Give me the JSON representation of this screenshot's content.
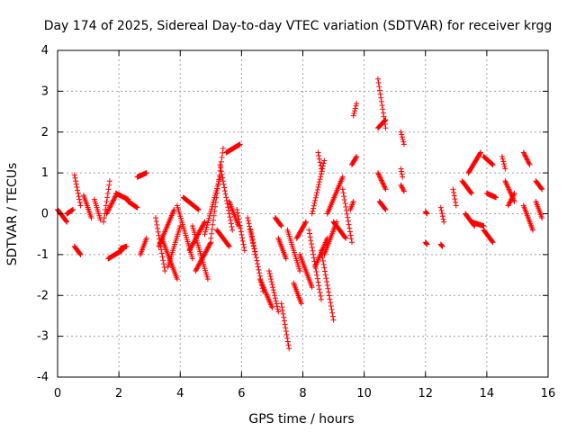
{
  "chart_data": {
    "type": "scatter",
    "title": "Day 174 of 2025, Sidereal Day-to-day VTEC variation (SDTVAR) for receiver krgg",
    "xlabel": "GPS time / hours",
    "ylabel": "SDTVAR / TECUs",
    "xlim": [
      0,
      16
    ],
    "ylim": [
      -4,
      4
    ],
    "xticks": [
      0,
      2,
      4,
      6,
      8,
      10,
      12,
      14,
      16
    ],
    "yticks": [
      -4,
      -3,
      -2,
      -1,
      0,
      1,
      2,
      3,
      4
    ],
    "grid": true,
    "marker": "plus",
    "color": "#ff0000",
    "series": [
      {
        "name": "SDTVAR",
        "segments": [
          [
            [
              0.0,
              0.1
            ],
            [
              0.3,
              -0.2
            ]
          ],
          [
            [
              0.3,
              0.0
            ],
            [
              0.5,
              0.1
            ]
          ],
          [
            [
              0.55,
              0.95
            ],
            [
              0.75,
              0.2
            ]
          ],
          [
            [
              0.55,
              -0.8
            ],
            [
              0.75,
              -1.0
            ]
          ],
          [
            [
              0.85,
              0.45
            ],
            [
              1.1,
              -0.1
            ]
          ],
          [
            [
              1.2,
              0.35
            ],
            [
              1.4,
              -0.15
            ]
          ],
          [
            [
              1.5,
              -0.2
            ],
            [
              1.7,
              0.8
            ]
          ],
          [
            [
              1.6,
              0.0
            ],
            [
              1.9,
              0.45
            ]
          ],
          [
            [
              1.65,
              -1.1
            ],
            [
              2.1,
              -0.9
            ]
          ],
          [
            [
              1.9,
              0.5
            ],
            [
              2.3,
              0.35
            ]
          ],
          [
            [
              2.05,
              -0.85
            ],
            [
              2.25,
              -0.8
            ]
          ],
          [
            [
              2.3,
              0.3
            ],
            [
              2.6,
              0.15
            ]
          ],
          [
            [
              2.6,
              0.9
            ],
            [
              2.9,
              1.0
            ]
          ],
          [
            [
              2.7,
              -1.0
            ],
            [
              2.9,
              -0.6
            ]
          ],
          [
            [
              3.2,
              -0.1
            ],
            [
              3.5,
              -1.4
            ]
          ],
          [
            [
              3.3,
              -0.8
            ],
            [
              3.8,
              0.1
            ]
          ],
          [
            [
              3.4,
              -0.6
            ],
            [
              3.9,
              -1.6
            ]
          ],
          [
            [
              3.6,
              -1.3
            ],
            [
              4.0,
              -0.3
            ]
          ],
          [
            [
              3.9,
              0.2
            ],
            [
              4.4,
              -1.1
            ]
          ],
          [
            [
              4.1,
              0.4
            ],
            [
              4.6,
              0.1
            ]
          ],
          [
            [
              4.3,
              -0.9
            ],
            [
              4.8,
              -0.2
            ]
          ],
          [
            [
              4.4,
              -0.3
            ],
            [
              4.9,
              -1.6
            ]
          ],
          [
            [
              4.5,
              -1.4
            ],
            [
              5.0,
              -0.7
            ]
          ],
          [
            [
              4.8,
              -0.5
            ],
            [
              5.3,
              0.9
            ]
          ],
          [
            [
              5.0,
              -0.6
            ],
            [
              5.4,
              1.6
            ]
          ],
          [
            [
              5.2,
              -0.4
            ],
            [
              5.6,
              -0.8
            ]
          ],
          [
            [
              5.3,
              1.2
            ],
            [
              5.7,
              -0.4
            ]
          ],
          [
            [
              5.5,
              1.5
            ],
            [
              5.95,
              1.7
            ]
          ],
          [
            [
              5.6,
              0.3
            ],
            [
              5.9,
              -0.3
            ]
          ],
          [
            [
              5.85,
              0.1
            ],
            [
              6.1,
              -0.9
            ]
          ],
          [
            [
              6.2,
              -0.1
            ],
            [
              6.45,
              -1.0
            ]
          ],
          [
            [
              6.3,
              -0.4
            ],
            [
              6.7,
              -1.9
            ]
          ],
          [
            [
              6.6,
              -1.6
            ],
            [
              7.0,
              -2.3
            ]
          ],
          [
            [
              6.9,
              -1.4
            ],
            [
              7.2,
              -2.4
            ]
          ],
          [
            [
              7.1,
              -0.1
            ],
            [
              7.3,
              -0.3
            ]
          ],
          [
            [
              7.2,
              -0.6
            ],
            [
              7.45,
              -1.1
            ]
          ],
          [
            [
              7.3,
              -2.2
            ],
            [
              7.55,
              -3.3
            ]
          ],
          [
            [
              7.5,
              -0.4
            ],
            [
              7.9,
              -1.4
            ]
          ],
          [
            [
              7.7,
              -1.7
            ],
            [
              7.95,
              -2.2
            ]
          ],
          [
            [
              7.8,
              -0.6
            ],
            [
              8.1,
              -0.2
            ]
          ],
          [
            [
              7.9,
              -1.0
            ],
            [
              8.3,
              -1.8
            ]
          ],
          [
            [
              8.2,
              -0.4
            ],
            [
              8.6,
              -2.1
            ]
          ],
          [
            [
              8.3,
              0.0
            ],
            [
              8.7,
              1.3
            ]
          ],
          [
            [
              8.4,
              -1.3
            ],
            [
              8.8,
              -0.6
            ]
          ],
          [
            [
              8.5,
              1.5
            ],
            [
              8.6,
              1.1
            ]
          ],
          [
            [
              8.6,
              -0.9
            ],
            [
              9.0,
              -2.6
            ]
          ],
          [
            [
              8.7,
              -1.0
            ],
            [
              9.1,
              -0.2
            ]
          ],
          [
            [
              8.8,
              0.0
            ],
            [
              9.3,
              0.9
            ]
          ],
          [
            [
              9.0,
              -0.2
            ],
            [
              9.4,
              -0.6
            ]
          ],
          [
            [
              9.3,
              0.6
            ],
            [
              9.6,
              -0.7
            ]
          ],
          [
            [
              9.6,
              1.2
            ],
            [
              9.75,
              1.4
            ]
          ],
          [
            [
              9.65,
              2.4
            ],
            [
              9.75,
              2.7
            ]
          ],
          [
            [
              9.55,
              0.1
            ],
            [
              9.65,
              0.3
            ]
          ],
          [
            [
              10.45,
              3.3
            ],
            [
              10.7,
              2.1
            ]
          ],
          [
            [
              10.45,
              2.1
            ],
            [
              10.7,
              2.3
            ]
          ],
          [
            [
              10.45,
              1.0
            ],
            [
              10.7,
              0.6
            ]
          ],
          [
            [
              10.5,
              0.3
            ],
            [
              10.7,
              0.1
            ]
          ],
          [
            [
              11.2,
              2.0
            ],
            [
              11.3,
              1.7
            ]
          ],
          [
            [
              11.2,
              1.1
            ],
            [
              11.25,
              0.9
            ]
          ],
          [
            [
              11.2,
              0.7
            ],
            [
              11.3,
              0.55
            ]
          ],
          [
            [
              12.0,
              0.05
            ],
            [
              12.05,
              0.0
            ]
          ],
          [
            [
              12.0,
              -0.7
            ],
            [
              12.05,
              -0.75
            ]
          ],
          [
            [
              12.5,
              0.15
            ],
            [
              12.6,
              -0.2
            ]
          ],
          [
            [
              12.5,
              -0.75
            ],
            [
              12.55,
              -0.8
            ]
          ],
          [
            [
              12.9,
              0.6
            ],
            [
              13.0,
              0.2
            ]
          ],
          [
            [
              13.2,
              0.8
            ],
            [
              13.5,
              0.5
            ]
          ],
          [
            [
              13.3,
              0.0
            ],
            [
              13.6,
              -0.3
            ]
          ],
          [
            [
              13.4,
              1.0
            ],
            [
              13.8,
              1.5
            ]
          ],
          [
            [
              13.5,
              -0.2
            ],
            [
              13.9,
              -0.3
            ]
          ],
          [
            [
              13.9,
              1.4
            ],
            [
              14.2,
              1.2
            ]
          ],
          [
            [
              13.9,
              -0.4
            ],
            [
              14.2,
              -0.7
            ]
          ],
          [
            [
              14.0,
              0.5
            ],
            [
              14.3,
              0.4
            ]
          ],
          [
            [
              14.5,
              1.4
            ],
            [
              14.6,
              1.1
            ]
          ],
          [
            [
              14.6,
              0.8
            ],
            [
              14.9,
              0.3
            ]
          ],
          [
            [
              14.7,
              0.2
            ],
            [
              14.9,
              0.5
            ]
          ],
          [
            [
              15.2,
              1.5
            ],
            [
              15.4,
              1.2
            ]
          ],
          [
            [
              15.2,
              0.2
            ],
            [
              15.5,
              -0.4
            ]
          ],
          [
            [
              15.6,
              0.8
            ],
            [
              15.8,
              0.6
            ]
          ],
          [
            [
              15.6,
              0.3
            ],
            [
              15.8,
              -0.1
            ]
          ]
        ]
      }
    ]
  }
}
